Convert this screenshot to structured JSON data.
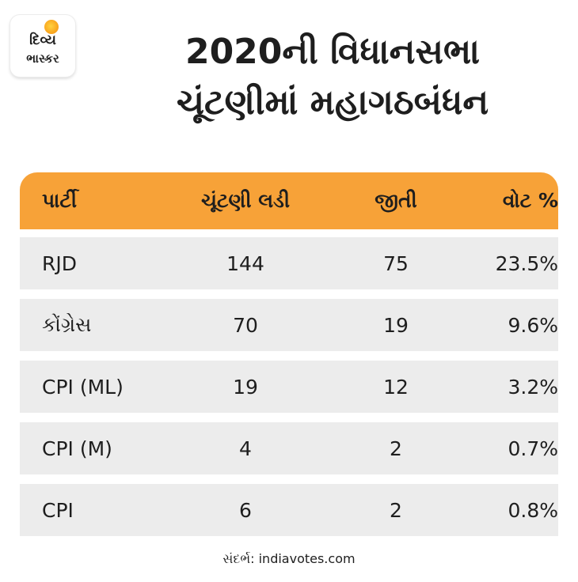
{
  "logo": {
    "line1": "દિવ્ય",
    "line2": "ભાસ્કર",
    "sun_color": "#f9a11b"
  },
  "title": {
    "line1": "2020ની વિધાનસભા",
    "line2": "ચૂંટણીમાં મહાગઠબંધન"
  },
  "table": {
    "header_color": "#f7a238",
    "row_color": "#ececec",
    "headers": [
      "પાર્ટી",
      "ચૂંટણી લડી",
      "જીતી",
      "વોટ %"
    ],
    "rows": [
      [
        "RJD",
        "144",
        "75",
        "23.5%"
      ],
      [
        "કોંગ્રેસ",
        "70",
        "19",
        "9.6%"
      ],
      [
        "CPI (ML)",
        "19",
        "12",
        "3.2%"
      ],
      [
        "CPI (M)",
        "4",
        "2",
        "0.7%"
      ],
      [
        "CPI",
        "6",
        "2",
        "0.8%"
      ]
    ]
  },
  "source": "સંદર્ભ: indiavotes.com"
}
